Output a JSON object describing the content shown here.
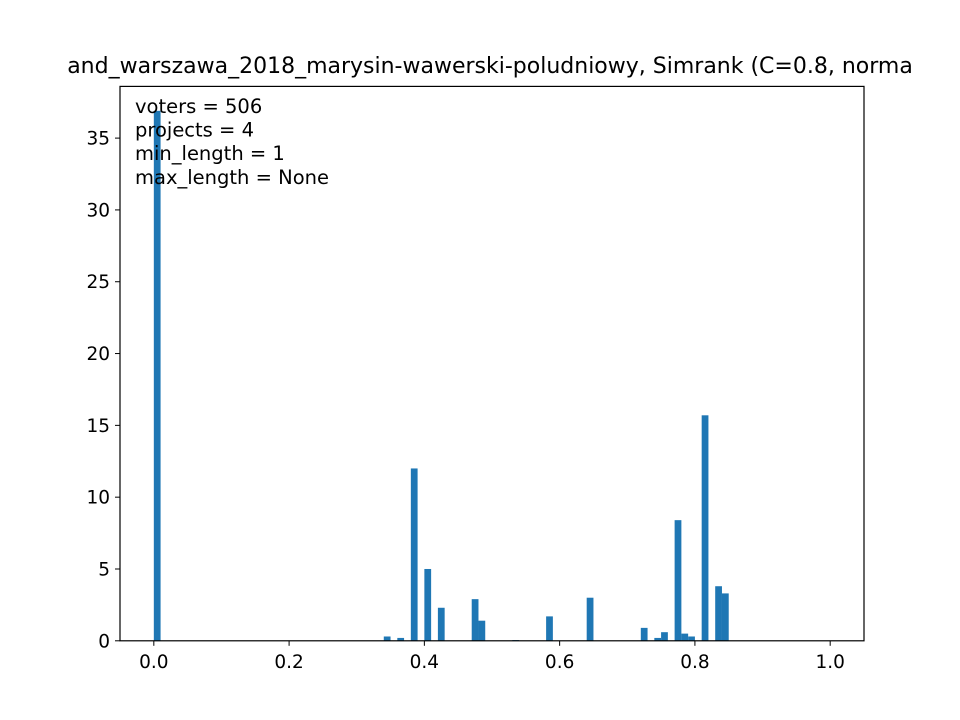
{
  "chart_data": {
    "type": "bar",
    "title": "and_warszawa_2018_marysin-wawerski-poludniowy, Simrank (C=0.8, norma",
    "xlabel": "",
    "ylabel": "",
    "xlim": [
      -0.05,
      1.05
    ],
    "ylim": [
      0,
      38.6
    ],
    "xticks": [
      0.0,
      0.2,
      0.4,
      0.6,
      0.8,
      1.0
    ],
    "xtick_labels": [
      "0.0",
      "0.2",
      "0.4",
      "0.6",
      "0.8",
      "1.0"
    ],
    "yticks": [
      0,
      5,
      10,
      15,
      20,
      25,
      30,
      35
    ],
    "ytick_labels": [
      "0",
      "5",
      "10",
      "15",
      "20",
      "25",
      "30",
      "35"
    ],
    "grid": false,
    "bar_color": "#1f77b4",
    "bin_width": 0.01,
    "bins_left": [
      0.0,
      0.34,
      0.36,
      0.38,
      0.4,
      0.42,
      0.47,
      0.48,
      0.53,
      0.58,
      0.64,
      0.72,
      0.74,
      0.75,
      0.77,
      0.78,
      0.79,
      0.81,
      0.83,
      0.84
    ],
    "values": [
      36.9,
      0.3,
      0.2,
      12.0,
      5.0,
      2.3,
      2.9,
      1.4,
      0.05,
      1.7,
      3.0,
      0.9,
      0.2,
      0.6,
      8.4,
      0.5,
      0.3,
      15.7,
      3.8,
      3.3
    ],
    "annotations": [
      "voters = 506",
      "projects = 4",
      "min_length = 1",
      "max_length = None"
    ]
  }
}
